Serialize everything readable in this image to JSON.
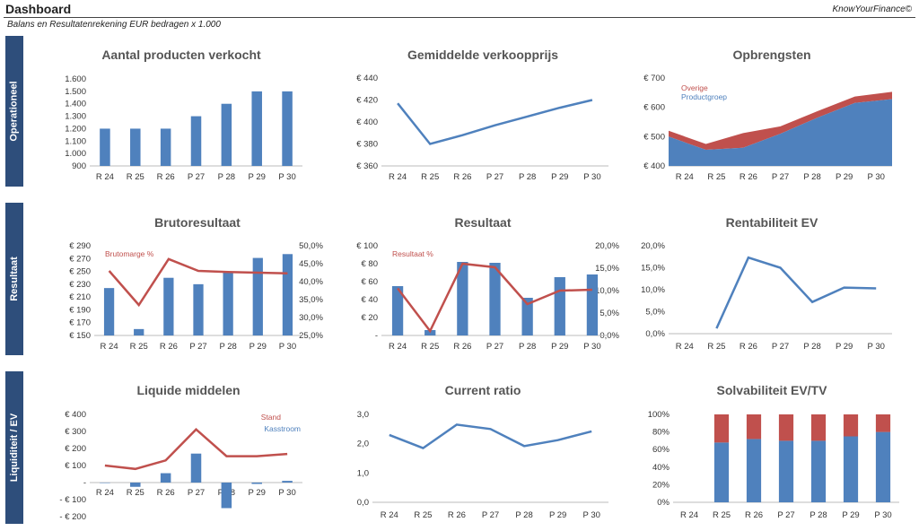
{
  "header": {
    "title": "Dashboard",
    "brand": "KnowYourFinance©",
    "subtitle": "Balans en Resultatenrekening EUR bedragen x 1.000"
  },
  "sections": [
    {
      "label": "Operationeel"
    },
    {
      "label": "Resultaat"
    },
    {
      "label": "Liquiditeit / EV"
    }
  ],
  "colors": {
    "blue": "#4F81BD",
    "red": "#C0504D",
    "sidebar": "#2E4E7B"
  },
  "chart_data": [
    {
      "id": "aantal",
      "type": "bar",
      "title": "Aantal producten verkocht",
      "categories": [
        "R 24",
        "R 25",
        "R 26",
        "P 27",
        "P 28",
        "P 29",
        "P 30"
      ],
      "values": [
        1200,
        1200,
        1200,
        1300,
        1400,
        1500,
        1500
      ],
      "ylim": [
        900,
        1600
      ],
      "yticks": [
        "1.600",
        "1.500",
        "1.400",
        "1.300",
        "1.200",
        "1.100",
        "1.000",
        "900"
      ]
    },
    {
      "id": "prijs",
      "type": "line",
      "title": "Gemiddelde verkoopprijs",
      "categories": [
        "R 24",
        "R 25",
        "R 26",
        "P 27",
        "P 28",
        "P 29",
        "P 30"
      ],
      "values": [
        417,
        380,
        388,
        397,
        405,
        413,
        420
      ],
      "ylim": [
        360,
        440
      ],
      "yticks": [
        "€ 440",
        "€ 420",
        "€ 400",
        "€ 380",
        "€ 360"
      ]
    },
    {
      "id": "opbr",
      "type": "area",
      "title": "Opbrengsten",
      "categories": [
        "R 24",
        "R 25",
        "R 26",
        "P 27",
        "P 28",
        "P 29",
        "P 30"
      ],
      "ylim": [
        400,
        700
      ],
      "yticks": [
        "€ 700",
        "€ 600",
        "€ 500",
        "€ 400"
      ],
      "series": [
        {
          "name": "Productgroep",
          "values": [
            500,
            455,
            462,
            510,
            565,
            615,
            628
          ]
        },
        {
          "name": "Overige",
          "values": [
            20,
            20,
            50,
            25,
            22,
            22,
            25
          ]
        }
      ]
    },
    {
      "id": "bruto",
      "type": "bar",
      "title": "Brutoresultaat",
      "categories": [
        "R 24",
        "R 25",
        "R 26",
        "P 27",
        "P 28",
        "P 29",
        "P 30"
      ],
      "values": [
        224,
        160,
        240,
        230,
        248,
        271,
        277
      ],
      "ylim": [
        150,
        290
      ],
      "yticks": [
        "€ 290",
        "€ 270",
        "€ 250",
        "€ 230",
        "€ 210",
        "€ 190",
        "€ 170",
        "€ 150"
      ],
      "line": {
        "name": "Brutomarge %",
        "values": [
          43.0,
          33.5,
          46.3,
          43.0,
          42.7,
          42.5,
          42.3
        ],
        "ylim": [
          25,
          50
        ]
      },
      "yticks2": [
        "50,0%",
        "45,0%",
        "40,0%",
        "35,0%",
        "30,0%",
        "25,0%"
      ]
    },
    {
      "id": "resultaat",
      "type": "bar",
      "title": "Resultaat",
      "categories": [
        "R 24",
        "R 25",
        "R 26",
        "P 27",
        "P 28",
        "P 29",
        "P 30"
      ],
      "values": [
        55,
        6,
        82,
        81,
        42,
        65,
        68
      ],
      "ylim": [
        0,
        100
      ],
      "yticks": [
        "€ 100",
        "€ 80",
        "€ 60",
        "€ 40",
        "€ 20",
        "-"
      ],
      "line": {
        "name": "Resultaat %",
        "values": [
          10.5,
          1.0,
          16.0,
          15.2,
          7.0,
          10.0,
          10.2
        ],
        "ylim": [
          0,
          20
        ]
      },
      "yticks2": [
        "20,0%",
        "15,0%",
        "10,0%",
        "5,0%",
        "0,0%"
      ]
    },
    {
      "id": "rentev",
      "type": "line",
      "title": "Rentabiliteit EV",
      "categories": [
        "R 24",
        "R 25",
        "R 26",
        "P 27",
        "P 28",
        "P 29",
        "P 30"
      ],
      "values": [
        null,
        1.2,
        17.3,
        15.0,
        7.2,
        10.5,
        10.3
      ],
      "ylim": [
        0,
        20
      ],
      "yticks": [
        "20,0%",
        "15,0%",
        "10,0%",
        "5,0%",
        "0,0%"
      ]
    },
    {
      "id": "liquide",
      "type": "bar",
      "title": "Liquide middelen",
      "categories": [
        "R 24",
        "R 25",
        "R 26",
        "P 27",
        "P 28",
        "P 29",
        "P 30"
      ],
      "values": [
        0,
        -25,
        55,
        170,
        -150,
        -8,
        10
      ],
      "ylim": [
        -200,
        400
      ],
      "yticks": [
        "€ 400",
        "€ 300",
        "€ 200",
        "€ 100",
        "-",
        "- € 100",
        "- € 200"
      ],
      "line": {
        "name": "Stand",
        "values": [
          100,
          80,
          130,
          312,
          155,
          155,
          168
        ],
        "ylim": [
          -200,
          400
        ]
      },
      "legend": [
        "Stand",
        "Kasstroom"
      ]
    },
    {
      "id": "current",
      "type": "line",
      "title": "Current ratio",
      "categories": [
        "R 24",
        "R 25",
        "R 26",
        "P 27",
        "P 28",
        "P 29",
        "P 30"
      ],
      "values": [
        2.3,
        1.85,
        2.65,
        2.5,
        1.92,
        2.12,
        2.42
      ],
      "ylim": [
        0,
        3
      ],
      "yticks": [
        "3,0",
        "2,0",
        "1,0",
        "0,0"
      ]
    },
    {
      "id": "solv",
      "type": "bar",
      "title": "Solvabiliteit EV/TV",
      "categories": [
        "R 24",
        "R 25",
        "R 26",
        "P 27",
        "P 28",
        "P 29",
        "P 30"
      ],
      "ylim": [
        0,
        100
      ],
      "yticks": [
        "100%",
        "80%",
        "60%",
        "40%",
        "20%",
        "0%"
      ],
      "series": [
        {
          "values": [
            null,
            68,
            72,
            70,
            70,
            75,
            80
          ]
        },
        {
          "values": [
            null,
            32,
            28,
            30,
            30,
            25,
            20
          ]
        }
      ]
    }
  ]
}
